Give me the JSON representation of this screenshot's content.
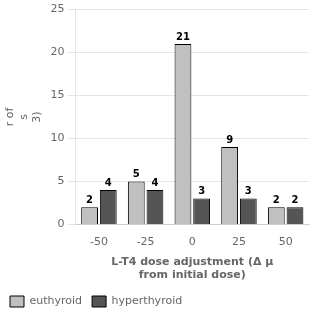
{
  "chart_data": {
    "type": "bar",
    "categories": [
      -50,
      -25,
      0,
      25,
      50
    ],
    "series": [
      {
        "name": "euthyroid",
        "color": "#c0c0c0",
        "values": [
          2,
          5,
          21,
          9,
          2
        ]
      },
      {
        "name": "hyperthyroid",
        "color": "#555555",
        "values": [
          4,
          4,
          3,
          3,
          2
        ]
      }
    ],
    "x_label": "L-T4 dose adjustment (Δ μ\nfrom initial dose)",
    "y_label": "r of\ns\n3)",
    "ylim": [
      0,
      25
    ],
    "yticks": [
      0,
      5,
      10,
      15,
      20,
      25
    ],
    "grid": true,
    "legend": "lower left",
    "data_labels": true
  }
}
